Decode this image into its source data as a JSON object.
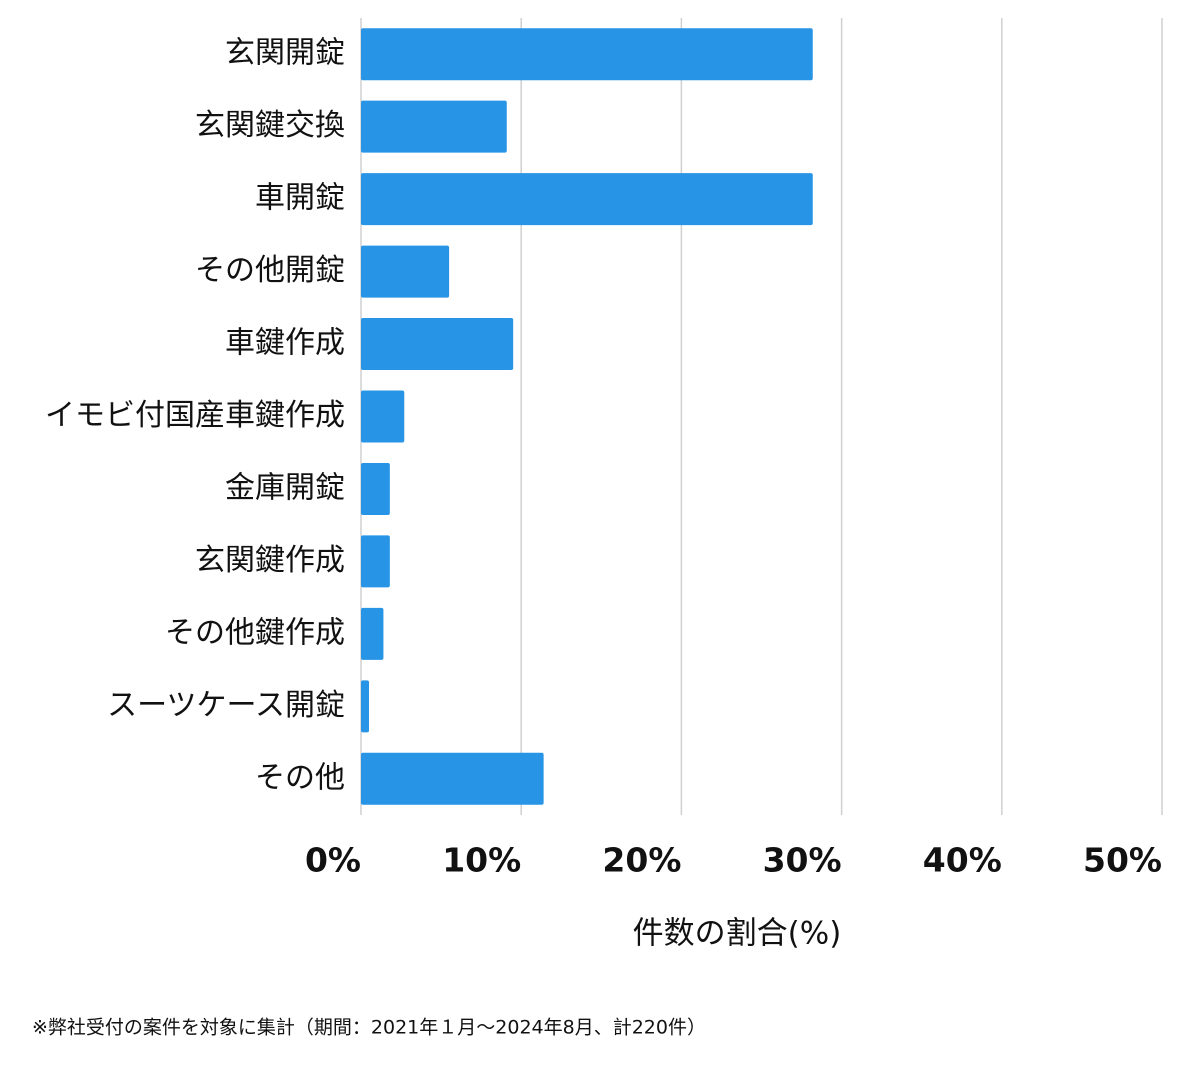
{
  "chart_data": {
    "type": "bar",
    "orientation": "horizontal",
    "categories": [
      "玄関開錠",
      "玄関鍵交換",
      "車開錠",
      "その他開錠",
      "車鍵作成",
      "イモビ付国産車鍵作成",
      "金庫開錠",
      "玄関鍵作成",
      "その他鍵作成",
      "スーツケース開錠",
      "その他"
    ],
    "values": [
      28.2,
      9.1,
      28.2,
      5.5,
      9.5,
      2.7,
      1.8,
      1.8,
      1.4,
      0.5,
      11.4
    ],
    "color": "#2794e6",
    "xlim": [
      0,
      50
    ],
    "xticks": [
      {
        "value": 0,
        "label": "0%"
      },
      {
        "value": 10,
        "label": "10%"
      },
      {
        "value": 20,
        "label": "20%"
      },
      {
        "value": 30,
        "label": "30%"
      },
      {
        "value": 40,
        "label": "40%"
      },
      {
        "value": 50,
        "label": "50%"
      }
    ],
    "grid": true,
    "xlabel": "件数の割合(%)",
    "footnote": "※弊社受付の案件を対象に集計（期間：2021年１月～2024年8月、計220件）"
  }
}
